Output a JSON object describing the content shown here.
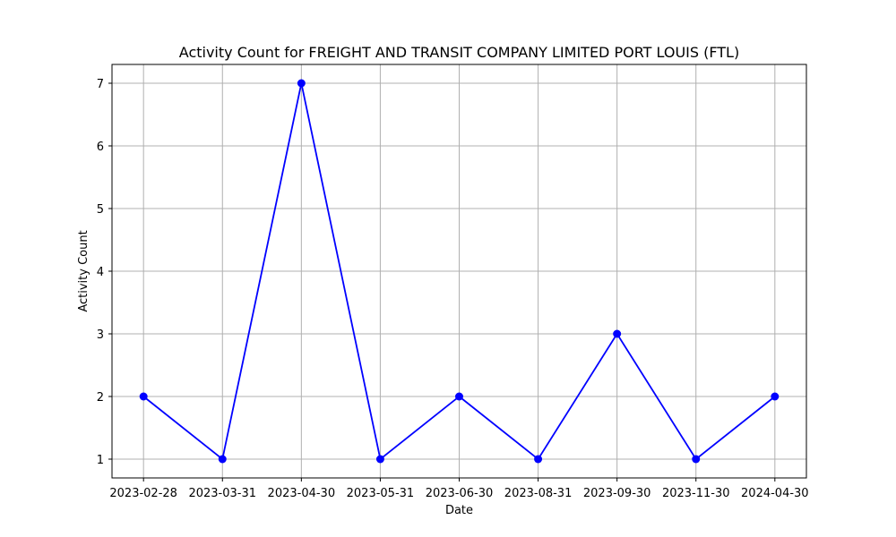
{
  "chart_data": {
    "type": "line",
    "title": "Activity Count for FREIGHT AND TRANSIT COMPANY LIMITED PORT LOUIS (FTL)",
    "xlabel": "Date",
    "ylabel": "Activity Count",
    "categories": [
      "2023-02-28",
      "2023-03-31",
      "2023-04-30",
      "2023-05-31",
      "2023-06-30",
      "2023-08-31",
      "2023-09-30",
      "2023-11-30",
      "2024-04-30"
    ],
    "series": [
      {
        "values": [
          2,
          1,
          7,
          1,
          2,
          1,
          3,
          1,
          2
        ],
        "color": "#0000ff",
        "marker": "circle"
      }
    ],
    "yticks": [
      1,
      2,
      3,
      4,
      5,
      6,
      7
    ],
    "ylim": [
      0.7,
      7.3
    ],
    "grid": true,
    "colors": {
      "grid": "#b0b0b0",
      "axis": "#000000"
    }
  }
}
